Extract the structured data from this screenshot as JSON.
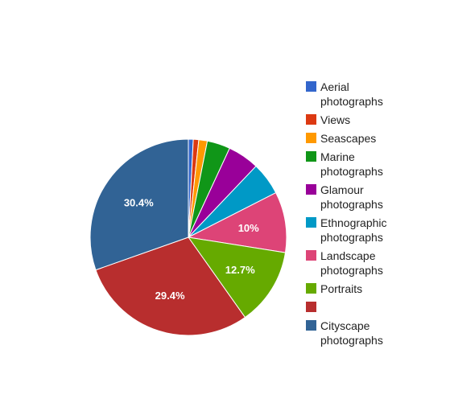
{
  "chart_data": {
    "type": "pie",
    "slices": [
      {
        "label": "Aerial photographs",
        "value": 0.8,
        "display": "",
        "color": "#3366cc"
      },
      {
        "label": "Views",
        "value": 0.9,
        "display": "",
        "color": "#dc3912"
      },
      {
        "label": "Seascapes",
        "value": 1.4,
        "display": "",
        "color": "#ff9900"
      },
      {
        "label": "Marine photographs",
        "value": 3.8,
        "display": "",
        "color": "#109618"
      },
      {
        "label": "Glamour photographs",
        "value": 5.2,
        "display": "",
        "color": "#990099"
      },
      {
        "label": "Ethnographic photographs",
        "value": 5.4,
        "display": "",
        "color": "#0099c6"
      },
      {
        "label": "Landscape photographs",
        "value": 10,
        "display": "10%",
        "color": "#dd4477"
      },
      {
        "label": "Portraits",
        "value": 12.7,
        "display": "12.7%",
        "color": "#66aa00"
      },
      {
        "label": "",
        "value": 29.4,
        "display": "29.4%",
        "color": "#b82e2e"
      },
      {
        "label": "Cityscape photographs",
        "value": 30.4,
        "display": "30.4%",
        "color": "#316395"
      }
    ],
    "legend_position": "right"
  }
}
